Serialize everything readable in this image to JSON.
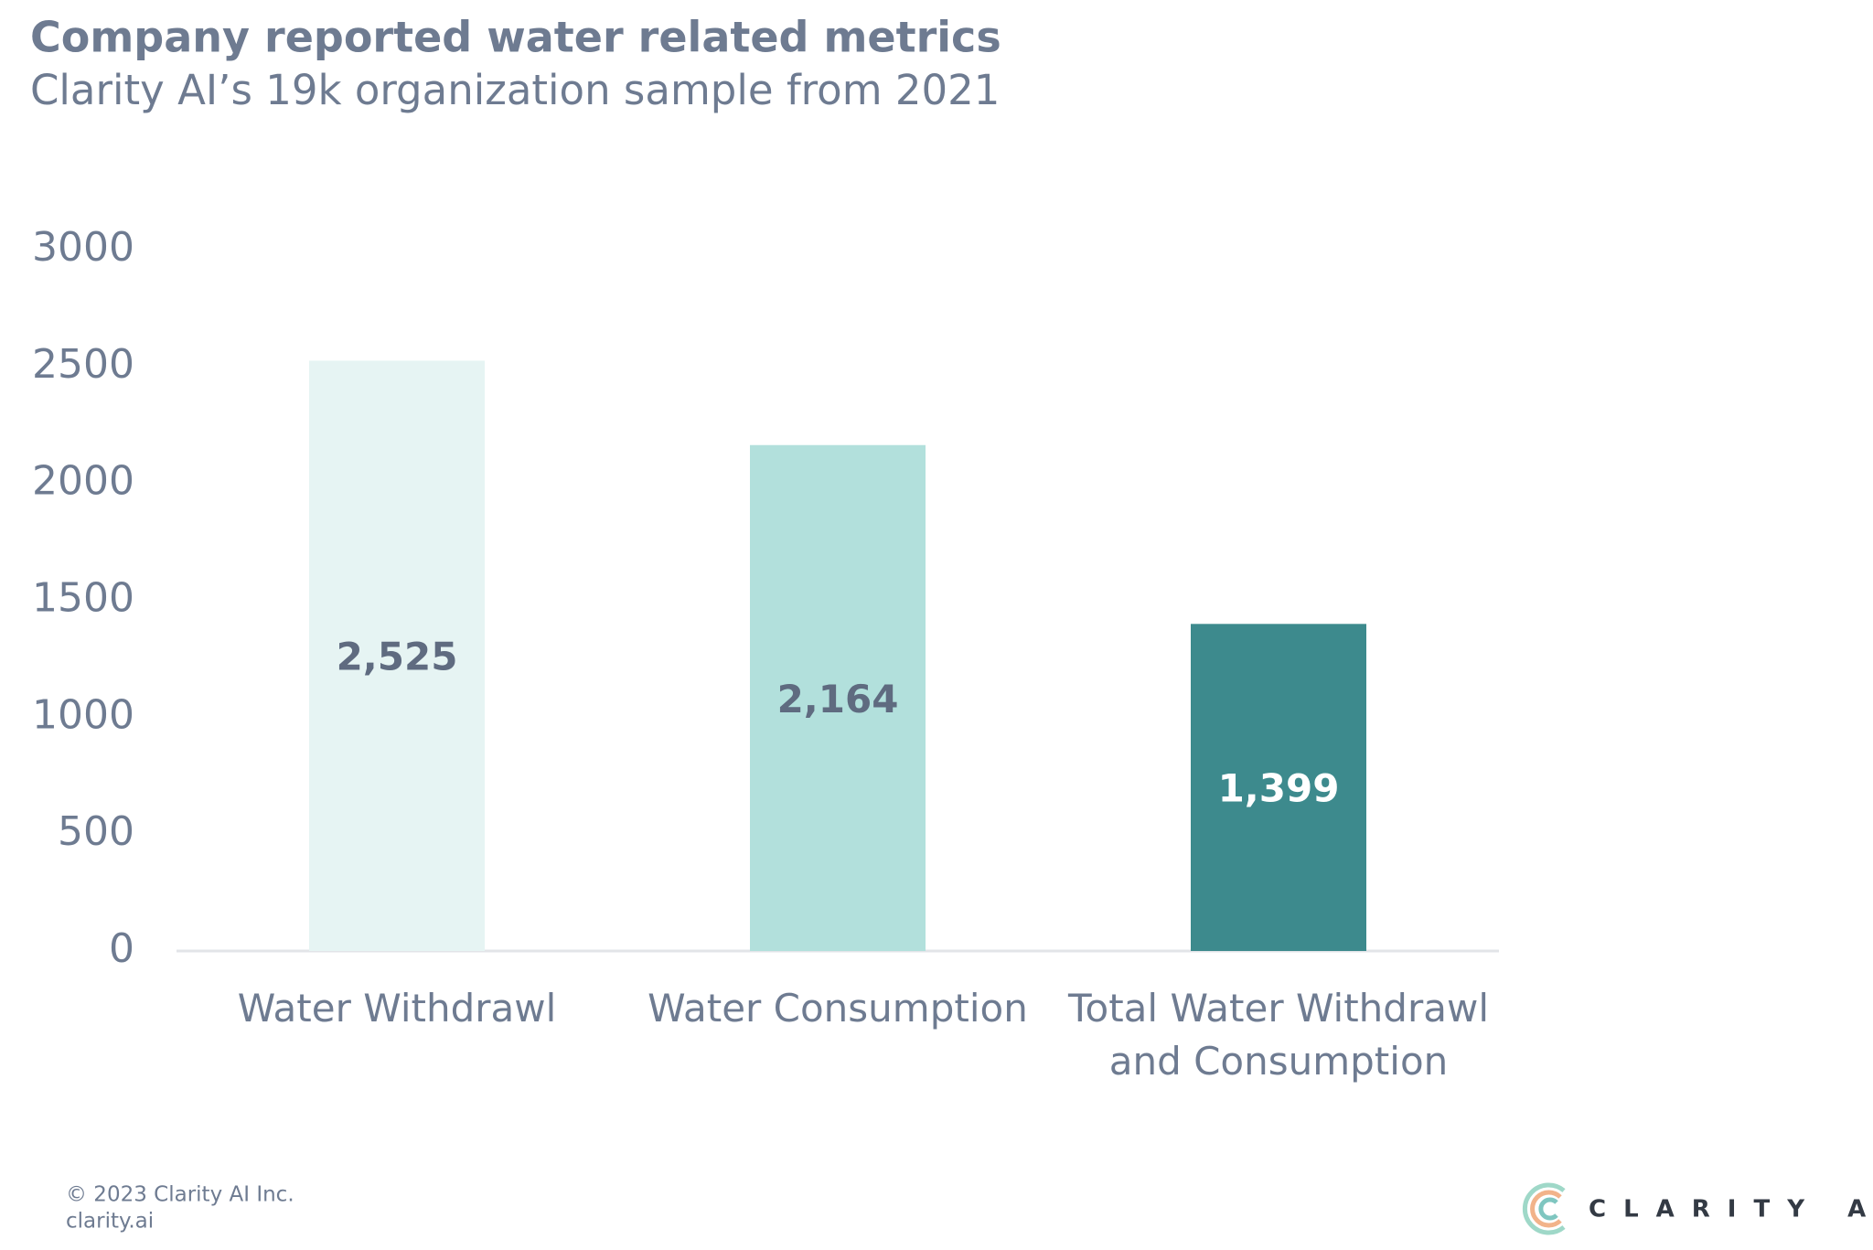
{
  "chart_data": {
    "type": "bar",
    "title": "Company reported water related metrics",
    "subtitle": "Clarity AI’s 19k organization sample from 2021",
    "categories": [
      "Water Withdrawl",
      "Water Consumption",
      "Total Water Withdrawl\nand Consumption"
    ],
    "values": [
      2525,
      2164,
      1399
    ],
    "value_labels": [
      "2,525",
      "2,164",
      "1,399"
    ],
    "colors": [
      "#e6f4f3",
      "#b2e0dc",
      "#3d8a8d"
    ],
    "ylim": [
      0,
      3000
    ],
    "yticks": [
      0,
      500,
      1000,
      1500,
      2000,
      2500,
      3000
    ],
    "grid": false
  },
  "footer": {
    "copyright": "© 2023 Clarity AI Inc.",
    "site": "clarity.ai",
    "logo": "CLARITY AI"
  }
}
